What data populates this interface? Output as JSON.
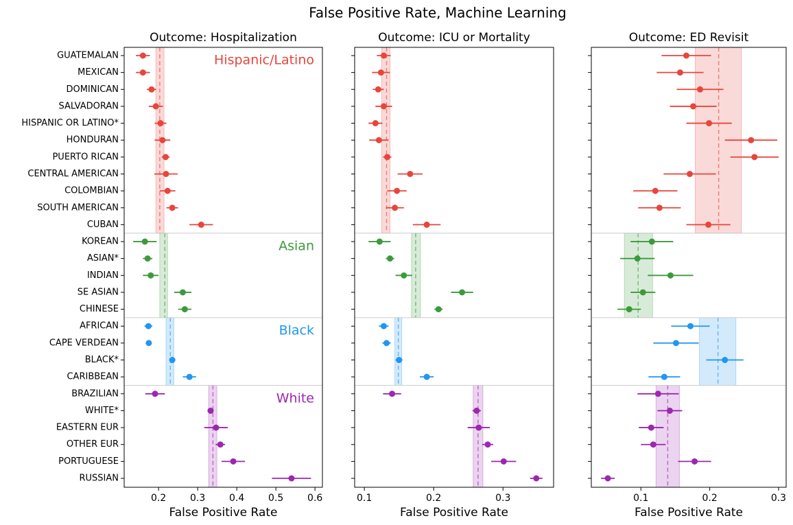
{
  "title": "False Positive Rate, Machine Learning",
  "chart_data": [
    {
      "type": "forest",
      "title": "Outcome: Hospitalization",
      "xlabel": "False Positive Rate",
      "xlim": [
        0.112,
        0.619
      ],
      "xticks": [
        0.2,
        0.3,
        0.4,
        0.5,
        0.6
      ],
      "series": [
        {
          "name": "Hispanic/Latino",
          "color": "#e8453c",
          "categories": [
            "GUATEMALAN",
            "MEXICAN",
            "DOMINICAN",
            "SALVADORAN",
            "HISPANIC OR LATINO*",
            "HONDURAN",
            "PUERTO RICAN",
            "CENTRAL AMERICAN",
            "COLOMBIAN",
            "SOUTH AMERICAN",
            "CUBAN"
          ],
          "values": [
            0.16,
            0.16,
            0.182,
            0.193,
            0.205,
            0.21,
            0.218,
            0.219,
            0.223,
            0.235,
            0.309
          ],
          "errors": [
            0.018,
            0.018,
            0.012,
            0.018,
            0.015,
            0.02,
            0.01,
            0.03,
            0.02,
            0.015,
            0.03
          ],
          "mean": 0.203,
          "band": [
            0.193,
            0.214
          ]
        },
        {
          "name": "Asian",
          "color": "#3c9a3c",
          "categories": [
            "KOREAN",
            "ASIAN*",
            "INDIAN",
            "SE ASIAN",
            "CHINESE"
          ],
          "values": [
            0.165,
            0.172,
            0.18,
            0.262,
            0.267
          ],
          "errors": [
            0.03,
            0.012,
            0.02,
            0.022,
            0.017
          ],
          "mean": 0.216,
          "band": [
            0.203,
            0.223
          ]
        },
        {
          "name": "Black",
          "color": "#2196f3",
          "categories": [
            "AFRICAN",
            "CAPE VERDEAN",
            "BLACK*",
            "CARIBBEAN"
          ],
          "values": [
            0.174,
            0.175,
            0.235,
            0.279
          ],
          "errors": [
            0.01,
            0.008,
            0.008,
            0.017
          ],
          "mean": 0.23,
          "band": [
            0.219,
            0.239
          ]
        },
        {
          "name": "White",
          "color": "#9c27b0",
          "categories": [
            "BRAZILIAN",
            "WHITE*",
            "EASTERN EUR",
            "OTHER EUR",
            "PORTUGUESE",
            "RUSSIAN"
          ],
          "values": [
            0.191,
            0.333,
            0.347,
            0.358,
            0.391,
            0.54
          ],
          "errors": [
            0.025,
            0.008,
            0.03,
            0.012,
            0.03,
            0.05
          ],
          "mean": 0.339,
          "band": [
            0.328,
            0.349
          ]
        }
      ]
    },
    {
      "type": "forest",
      "title": "Outcome: ICU or Mortality",
      "xlabel": "False Positive Rate",
      "xlim": [
        0.086,
        0.373
      ],
      "xticks": [
        0.1,
        0.2,
        0.3
      ],
      "series": [
        {
          "color": "#e8453c",
          "values": [
            0.128,
            0.124,
            0.12,
            0.128,
            0.116,
            0.121,
            0.133,
            0.166,
            0.147,
            0.144,
            0.19
          ],
          "errors": [
            0.01,
            0.013,
            0.008,
            0.012,
            0.01,
            0.014,
            0.006,
            0.018,
            0.014,
            0.013,
            0.02
          ],
          "mean": 0.132,
          "band": [
            0.125,
            0.137
          ]
        },
        {
          "color": "#3c9a3c",
          "values": [
            0.122,
            0.137,
            0.157,
            0.241,
            0.207
          ],
          "errors": [
            0.016,
            0.006,
            0.012,
            0.016,
            0.006
          ],
          "mean": 0.174,
          "band": [
            0.168,
            0.181
          ]
        },
        {
          "color": "#2196f3",
          "values": [
            0.128,
            0.132,
            0.15,
            0.19
          ],
          "errors": [
            0.007,
            0.006,
            0.005,
            0.01
          ],
          "mean": 0.149,
          "band": [
            0.144,
            0.154
          ]
        },
        {
          "color": "#9c27b0",
          "values": [
            0.14,
            0.262,
            0.265,
            0.278,
            0.301,
            0.348
          ],
          "errors": [
            0.013,
            0.006,
            0.016,
            0.008,
            0.018,
            0.009
          ],
          "mean": 0.264,
          "band": [
            0.257,
            0.271
          ]
        }
      ]
    },
    {
      "type": "forest",
      "title": "Outcome: ED Revisit",
      "xlabel": "False Positive Rate",
      "xlim": [
        0.028,
        0.311
      ],
      "xticks": [
        0.1,
        0.2,
        0.3
      ],
      "series": [
        {
          "color": "#e8453c",
          "values": [
            0.166,
            0.157,
            0.186,
            0.176,
            0.199,
            0.26,
            0.265,
            0.171,
            0.121,
            0.127,
            0.198
          ],
          "errors": [
            0.036,
            0.034,
            0.034,
            0.034,
            0.033,
            0.038,
            0.035,
            0.038,
            0.032,
            0.031,
            0.032
          ],
          "mean": 0.213,
          "band": [
            0.179,
            0.246
          ]
        },
        {
          "color": "#3c9a3c",
          "values": [
            0.116,
            0.095,
            0.143,
            0.103,
            0.083
          ],
          "errors": [
            0.031,
            0.025,
            0.033,
            0.018,
            0.017
          ],
          "mean": 0.096,
          "band": [
            0.076,
            0.117
          ]
        },
        {
          "color": "#2196f3",
          "values": [
            0.172,
            0.151,
            0.222,
            0.134
          ],
          "errors": [
            0.028,
            0.033,
            0.027,
            0.023
          ],
          "mean": 0.212,
          "band": [
            0.185,
            0.238
          ]
        },
        {
          "color": "#9c27b0",
          "values": [
            0.125,
            0.142,
            0.115,
            0.118,
            0.178,
            0.052
          ],
          "errors": [
            0.03,
            0.018,
            0.018,
            0.018,
            0.024,
            0.01
          ],
          "mean": 0.139,
          "band": [
            0.122,
            0.156
          ]
        }
      ]
    }
  ]
}
